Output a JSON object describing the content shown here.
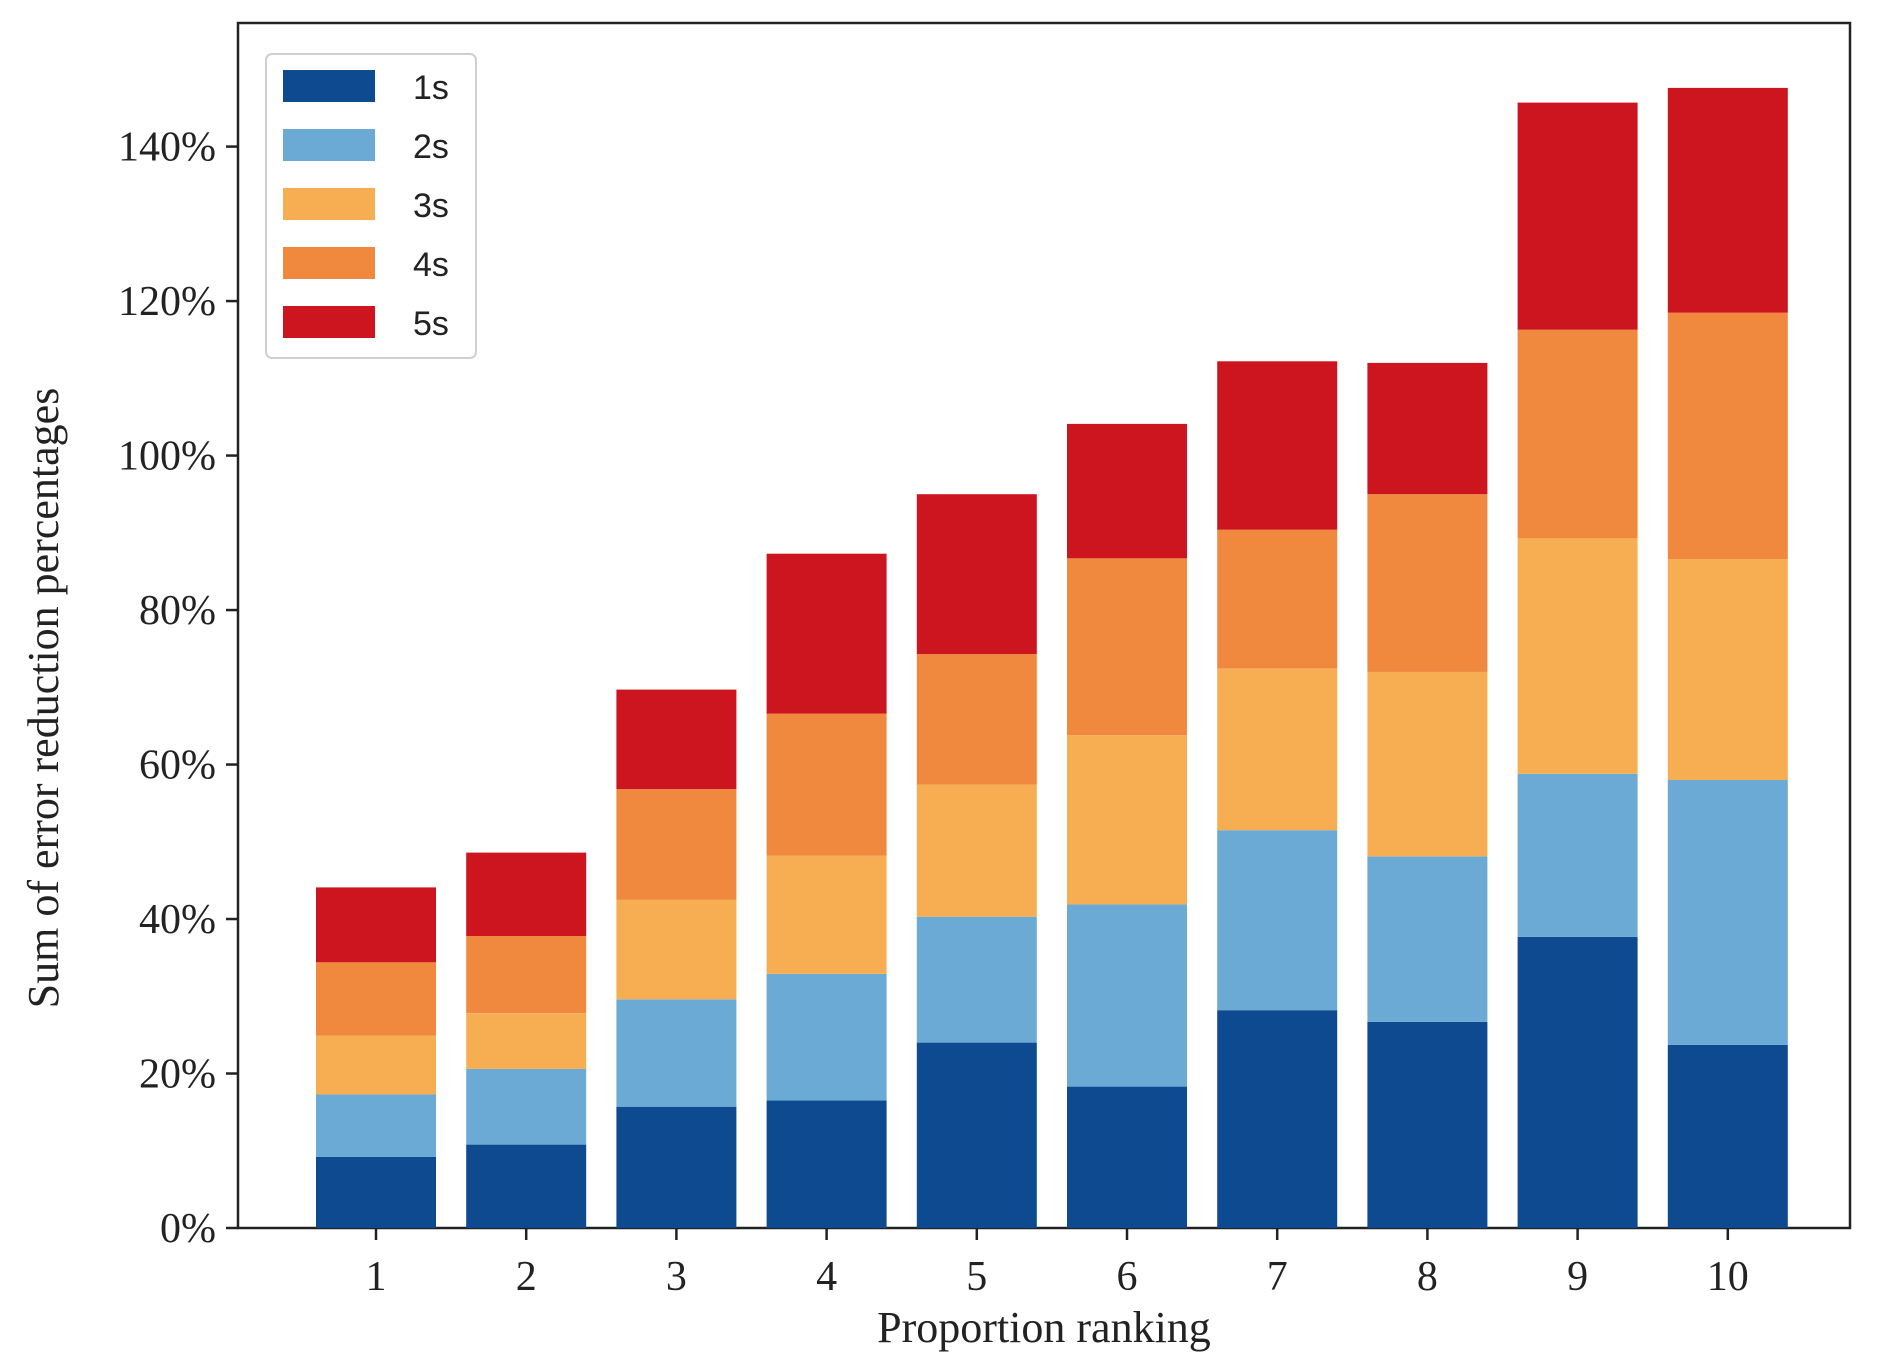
{
  "chart_data": {
    "type": "bar",
    "stacked": true,
    "title": "",
    "xlabel": "Proportion ranking",
    "ylabel": "Sum of error reduction percentages",
    "categories": [
      "1",
      "2",
      "3",
      "4",
      "5",
      "6",
      "7",
      "8",
      "9",
      "10"
    ],
    "ylim": [
      0,
      156
    ],
    "yticks": [
      0,
      20,
      40,
      60,
      80,
      100,
      120,
      140
    ],
    "ytick_labels": [
      "0%",
      "20%",
      "40%",
      "60%",
      "80%",
      "100%",
      "120%",
      "140%"
    ],
    "legend_position": "top-left",
    "series": [
      {
        "name": "1s",
        "color": "#0d4a8f",
        "values": [
          9.2,
          10.8,
          15.7,
          16.5,
          24.0,
          18.3,
          28.2,
          26.7,
          37.7,
          23.7
        ]
      },
      {
        "name": "2s",
        "color": "#6aaad5",
        "values": [
          8.1,
          9.8,
          13.9,
          16.4,
          16.3,
          23.6,
          23.3,
          21.4,
          21.1,
          34.3
        ]
      },
      {
        "name": "3s",
        "color": "#f7ae52",
        "values": [
          7.6,
          7.2,
          12.9,
          15.3,
          17.1,
          21.9,
          20.9,
          23.9,
          30.5,
          28.6
        ]
      },
      {
        "name": "4s",
        "color": "#f0883e",
        "values": [
          9.5,
          10.0,
          14.3,
          18.4,
          16.9,
          22.9,
          18.0,
          23.0,
          27.0,
          31.9
        ]
      },
      {
        "name": "5s",
        "color": "#cc151f",
        "values": [
          9.7,
          10.8,
          12.9,
          20.7,
          20.7,
          17.4,
          21.8,
          17.0,
          29.4,
          29.1
        ]
      }
    ]
  }
}
